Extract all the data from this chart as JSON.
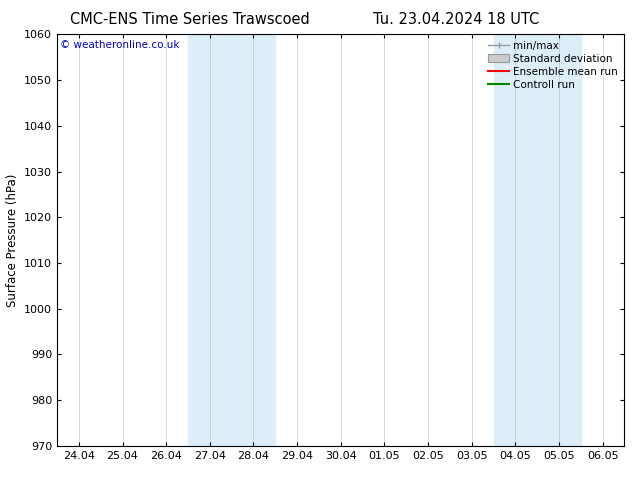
{
  "title_left": "CMC-ENS Time Series Trawscoed",
  "title_right": "Tu. 23.04.2024 18 UTC",
  "ylabel": "Surface Pressure (hPa)",
  "ylim": [
    970,
    1060
  ],
  "yticks": [
    970,
    980,
    990,
    1000,
    1010,
    1020,
    1030,
    1040,
    1050,
    1060
  ],
  "x_tick_labels": [
    "24.04",
    "25.04",
    "26.04",
    "27.04",
    "28.04",
    "29.04",
    "30.04",
    "01.05",
    "02.05",
    "03.05",
    "04.05",
    "05.05",
    "06.05"
  ],
  "n_ticks": 13,
  "shaded_regions": [
    {
      "start": 3,
      "end": 4
    },
    {
      "start": 10,
      "end": 11
    }
  ],
  "shaded_color": "#ddeef8",
  "watermark": "© weatheronline.co.uk",
  "watermark_color": "#0000cc",
  "legend_entries": [
    {
      "label": "min/max",
      "color": "#999999",
      "style": "minmax"
    },
    {
      "label": "Standard deviation",
      "color": "#cccccc",
      "style": "stddev"
    },
    {
      "label": "Ensemble mean run",
      "color": "#ff0000",
      "style": "line"
    },
    {
      "label": "Controll run",
      "color": "#008800",
      "style": "line"
    }
  ],
  "bg_color": "#ffffff",
  "plot_bg_color": "#ffffff",
  "title_fontsize": 10.5,
  "axis_fontsize": 8.5,
  "tick_fontsize": 8,
  "legend_fontsize": 7.5
}
